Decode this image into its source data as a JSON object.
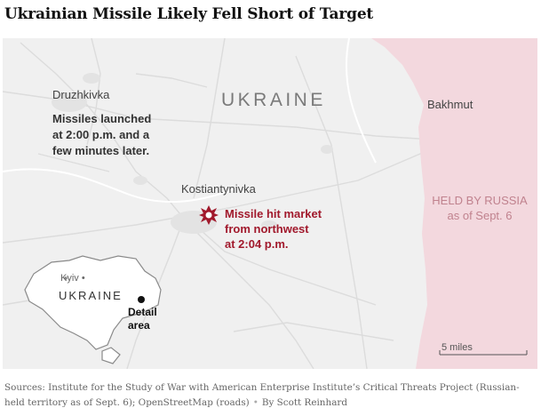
{
  "title": "Ukrainian Missile Likely Fell Short of Target",
  "map": {
    "country_label": "UKRAINE",
    "places": {
      "druzhkivka": "Druzhkivka",
      "kostiantynivka": "Kostiantynivka",
      "bakhmut": "Bakhmut"
    },
    "missiles_note": "Missiles launched\nat 2:00 p.m. and a\nfew minutes later.",
    "hit_note": "Missile hit market\nfrom northwest\nat 2:04 p.m.",
    "held_by_russia": {
      "line1": "HELD BY RUSSIA",
      "line2": "as of Sept. 6"
    },
    "scale_label": "5 miles",
    "colors": {
      "map_background": "#f0f0f0",
      "russia_held": "#f3d8de",
      "hit_marker": "#a1192c",
      "roads": "#d9d9d9"
    },
    "inset": {
      "city": "Kyiv",
      "country": "UKRAINE",
      "detail": "Detail\narea"
    }
  },
  "sources": {
    "text": "Sources: Institute for the Study of War with American Enterprise Institute’s Critical Threats Project (Russian-held territory as of Sept. 6); OpenStreetMap (roads)",
    "credit": "By Scott Reinhard"
  }
}
